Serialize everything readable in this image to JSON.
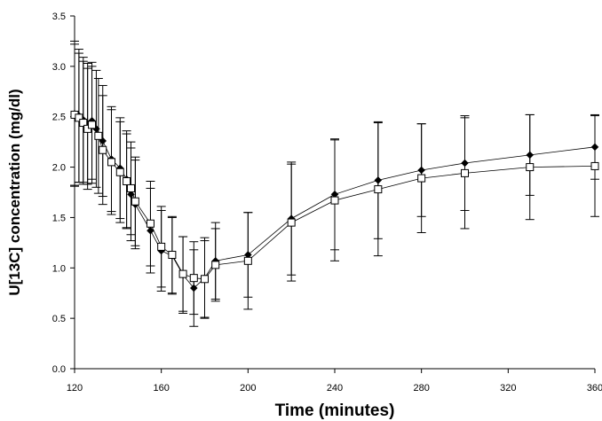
{
  "chart_data": {
    "type": "line",
    "title": "",
    "xlabel": "Time (minutes)",
    "ylabel": "U[13C] concentration (mg/dl)",
    "xlim": [
      120,
      360
    ],
    "ylim": [
      0,
      3.5
    ],
    "x_ticks": [
      "120",
      "160",
      "200",
      "240",
      "280",
      "320",
      "360"
    ],
    "y_ticks": [
      "0.0",
      "0.5",
      "1.0",
      "1.5",
      "2.0",
      "2.5",
      "3.0",
      "3.5"
    ],
    "grid": false,
    "legend": "none",
    "series": [
      {
        "marker": "diamond-filled",
        "color": "#000000",
        "points": [
          {
            "x": 120,
            "y": 2.53,
            "err": 0.72
          },
          {
            "x": 122,
            "y": 2.51,
            "err": 0.66
          },
          {
            "x": 124,
            "y": 2.47,
            "err": 0.62
          },
          {
            "x": 126,
            "y": 2.43,
            "err": 0.6
          },
          {
            "x": 128,
            "y": 2.46,
            "err": 0.58
          },
          {
            "x": 130,
            "y": 2.38,
            "err": 0.58
          },
          {
            "x": 133,
            "y": 2.26,
            "err": 0.55
          },
          {
            "x": 137,
            "y": 2.08,
            "err": 0.52
          },
          {
            "x": 141,
            "y": 1.99,
            "err": 0.5
          },
          {
            "x": 144,
            "y": 1.88,
            "err": 0.48
          },
          {
            "x": 146,
            "y": 1.73,
            "err": 0.46
          },
          {
            "x": 148,
            "y": 1.63,
            "err": 0.44
          },
          {
            "x": 155,
            "y": 1.37,
            "err": 0.42
          },
          {
            "x": 160,
            "y": 1.17,
            "err": 0.4
          },
          {
            "x": 165,
            "y": 1.12,
            "err": 0.38
          },
          {
            "x": 170,
            "y": 0.93,
            "err": 0.38
          },
          {
            "x": 175,
            "y": 0.8,
            "err": 0.38
          },
          {
            "x": 180,
            "y": 0.9,
            "err": 0.4
          },
          {
            "x": 185,
            "y": 1.07,
            "err": 0.38
          },
          {
            "x": 200,
            "y": 1.13,
            "err": 0.42
          },
          {
            "x": 220,
            "y": 1.49,
            "err": 0.56
          },
          {
            "x": 240,
            "y": 1.73,
            "err": 0.55
          },
          {
            "x": 260,
            "y": 1.87,
            "err": 0.58
          },
          {
            "x": 280,
            "y": 1.97,
            "err": 0.46
          },
          {
            "x": 300,
            "y": 2.04,
            "err": 0.47
          },
          {
            "x": 330,
            "y": 2.12,
            "err": 0.4
          },
          {
            "x": 360,
            "y": 2.2,
            "err": 0.32
          }
        ]
      },
      {
        "marker": "square-open",
        "color": "#000000",
        "points": [
          {
            "x": 120,
            "y": 2.52,
            "err": 0.7
          },
          {
            "x": 122,
            "y": 2.49,
            "err": 0.64
          },
          {
            "x": 124,
            "y": 2.44,
            "err": 0.61
          },
          {
            "x": 126,
            "y": 2.38,
            "err": 0.6
          },
          {
            "x": 128,
            "y": 2.42,
            "err": 0.58
          },
          {
            "x": 131,
            "y": 2.31,
            "err": 0.57
          },
          {
            "x": 133,
            "y": 2.17,
            "err": 0.54
          },
          {
            "x": 137,
            "y": 2.05,
            "err": 0.52
          },
          {
            "x": 141,
            "y": 1.95,
            "err": 0.5
          },
          {
            "x": 144,
            "y": 1.86,
            "err": 0.47
          },
          {
            "x": 146,
            "y": 1.79,
            "err": 0.46
          },
          {
            "x": 148,
            "y": 1.66,
            "err": 0.44
          },
          {
            "x": 155,
            "y": 1.44,
            "err": 0.42
          },
          {
            "x": 160,
            "y": 1.21,
            "err": 0.4
          },
          {
            "x": 165,
            "y": 1.13,
            "err": 0.38
          },
          {
            "x": 170,
            "y": 0.94,
            "err": 0.37
          },
          {
            "x": 175,
            "y": 0.9,
            "err": 0.36
          },
          {
            "x": 180,
            "y": 0.89,
            "err": 0.38
          },
          {
            "x": 185,
            "y": 1.03,
            "err": 0.36
          },
          {
            "x": 200,
            "y": 1.07,
            "err": 0.48
          },
          {
            "x": 220,
            "y": 1.45,
            "err": 0.58
          },
          {
            "x": 240,
            "y": 1.67,
            "err": 0.6
          },
          {
            "x": 260,
            "y": 1.78,
            "err": 0.66
          },
          {
            "x": 280,
            "y": 1.89,
            "err": 0.54
          },
          {
            "x": 300,
            "y": 1.94,
            "err": 0.55
          },
          {
            "x": 330,
            "y": 2.0,
            "err": 0.52
          },
          {
            "x": 360,
            "y": 2.01,
            "err": 0.5
          }
        ]
      }
    ]
  }
}
